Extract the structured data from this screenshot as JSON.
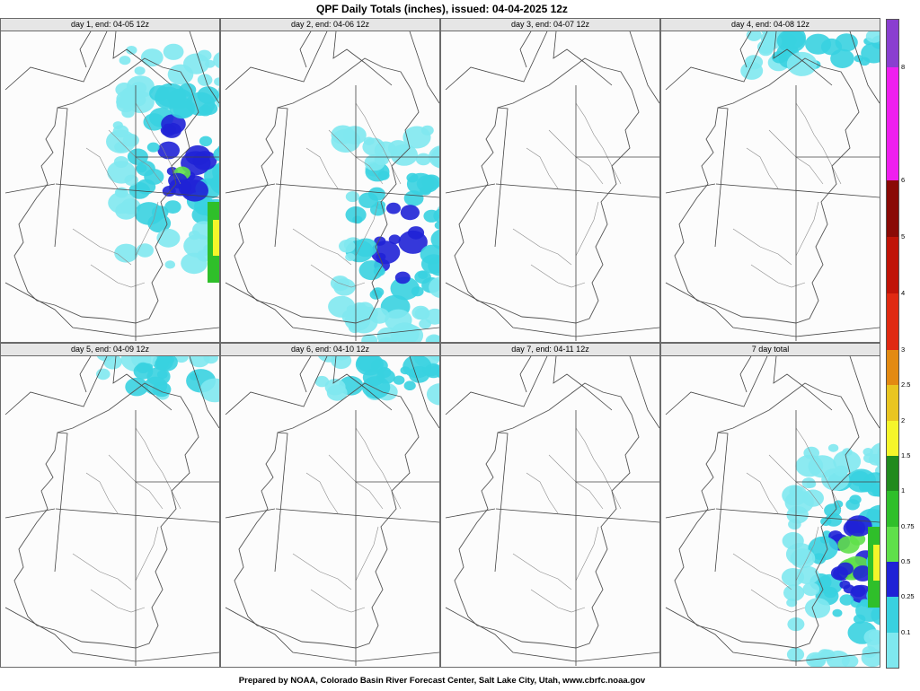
{
  "title": "QPF Daily Totals (inches),  issued: 04-04-2025 12z",
  "footer": "Prepared by NOAA, Colorado Basin River Forecast Center, Salt Lake City, Utah, www.cbrfc.noaa.gov",
  "panels": [
    {
      "label": "day 1, end: 04-05 12z",
      "intensity": 0.85,
      "focus": "north-east"
    },
    {
      "label": "day 2, end: 04-06 12z",
      "intensity": 0.7,
      "focus": "south-east"
    },
    {
      "label": "day 3, end: 04-07 12z",
      "intensity": 0.0,
      "focus": "none"
    },
    {
      "label": "day 4, end: 04-08 12z",
      "intensity": 0.25,
      "focus": "north"
    },
    {
      "label": "day 5, end: 04-09 12z",
      "intensity": 0.2,
      "focus": "north"
    },
    {
      "label": "day 6, end: 04-10 12z",
      "intensity": 0.22,
      "focus": "north"
    },
    {
      "label": "day 7, end: 04-11 12z",
      "intensity": 0.0,
      "focus": "none"
    },
    {
      "label": "7 day total",
      "intensity": 1.0,
      "focus": "east"
    }
  ],
  "legend": {
    "unit": "inches",
    "ticks": [
      "0.1",
      "0.25",
      "0.5",
      "0.75",
      "1",
      "1.5",
      "2",
      "2.5",
      "3",
      "4",
      "5",
      "6",
      "8"
    ],
    "colors": {
      "lt_0.1": "#7fe8ef",
      "0.1_0.25": "#39d1e0",
      "0.25_0.5": "#1f22d6",
      "0.5_0.75": "#5fe04a",
      "0.75_1": "#2fbf2a",
      "1_1.5": "#218a1d",
      "1.5_2": "#f5f52a",
      "2_2.5": "#e9c520",
      "2.5_3": "#e38a12",
      "3_4": "#e02a12",
      "4_5": "#c01408",
      "5_6": "#8a0a06",
      "6_8": "#ef1fef",
      "8_plus": "#8a3fd0"
    }
  }
}
